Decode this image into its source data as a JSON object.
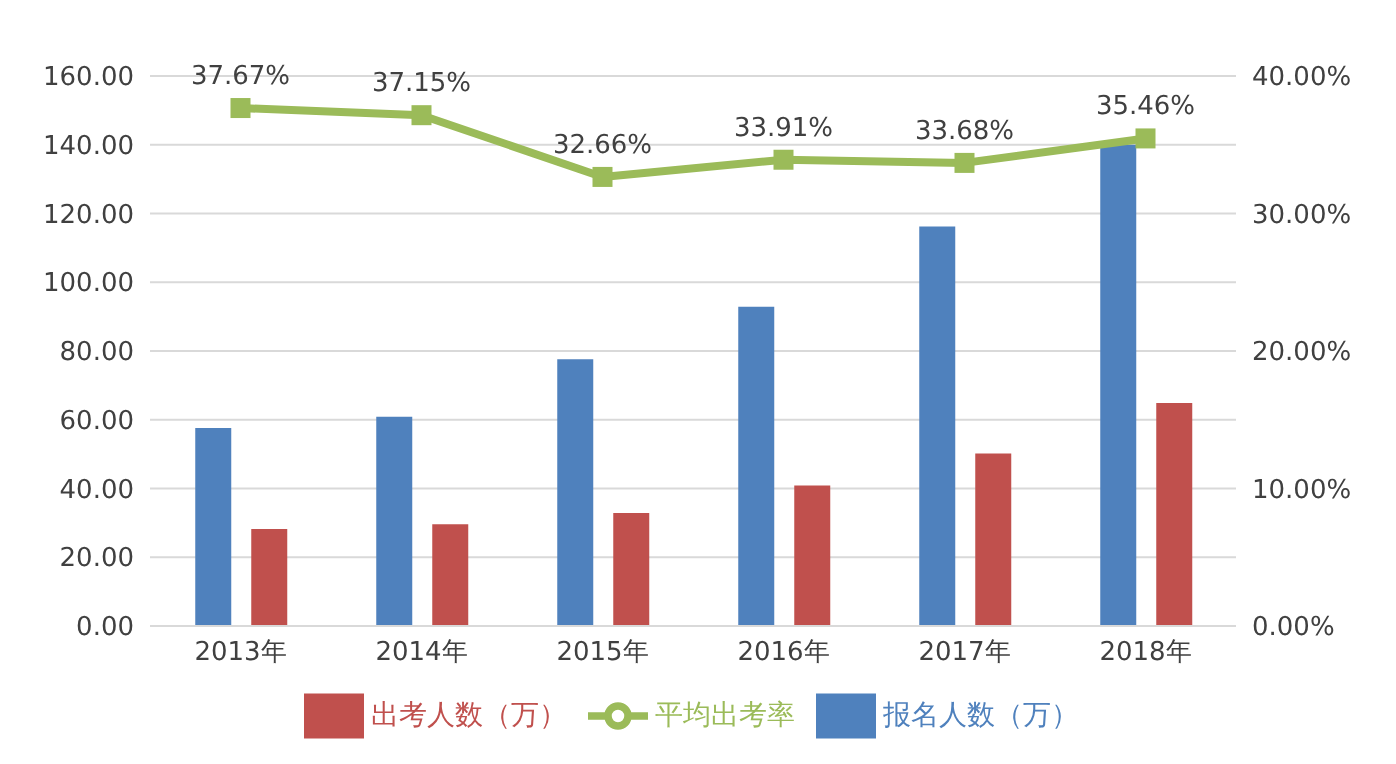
{
  "chart_data": {
    "type": "bar",
    "categories": [
      "2013年",
      "2014年",
      "2015年",
      "2016年",
      "2017年",
      "2018年"
    ],
    "series": [
      {
        "name": "报名人数（万）",
        "color": "#4f81bd",
        "values": [
          57.6,
          60.9,
          77.6,
          92.9,
          116.2,
          140
        ]
      },
      {
        "name": "出考人数（万）",
        "color": "#c0504d",
        "values": [
          28.2,
          29.6,
          32.9,
          40.9,
          50.2,
          64.9
        ]
      },
      {
        "name": "平均出考率",
        "type": "line",
        "axis": "y2",
        "color": "#9bbb59",
        "marker": "square",
        "values": [
          37.67,
          37.15,
          32.66,
          33.91,
          33.68,
          35.46
        ],
        "value_labels": [
          "37.67%",
          "37.15%",
          "32.66%",
          "33.91%",
          "33.68%",
          "35.46%"
        ]
      }
    ],
    "ylim": [
      0,
      160
    ],
    "yticks": [
      {
        "value": 0,
        "label": "0.00"
      },
      {
        "value": 20,
        "label": "20.00"
      },
      {
        "value": 40,
        "label": "40.00"
      },
      {
        "value": 60,
        "label": "60.00"
      },
      {
        "value": 80,
        "label": "80.00"
      },
      {
        "value": 100,
        "label": "100.00"
      },
      {
        "value": 120,
        "label": "120.00"
      },
      {
        "value": 140,
        "label": "140.00"
      },
      {
        "value": 160,
        "label": "160.00"
      }
    ],
    "y2lim": [
      0,
      40
    ],
    "y2ticks": [
      {
        "value": 0,
        "label": "0.00%"
      },
      {
        "value": 10,
        "label": "10.00%"
      },
      {
        "value": 20,
        "label": "20.00%"
      },
      {
        "value": 30,
        "label": "30.00%"
      },
      {
        "value": 40,
        "label": "40.00%"
      }
    ],
    "grid": "y",
    "legend": "bottom"
  }
}
